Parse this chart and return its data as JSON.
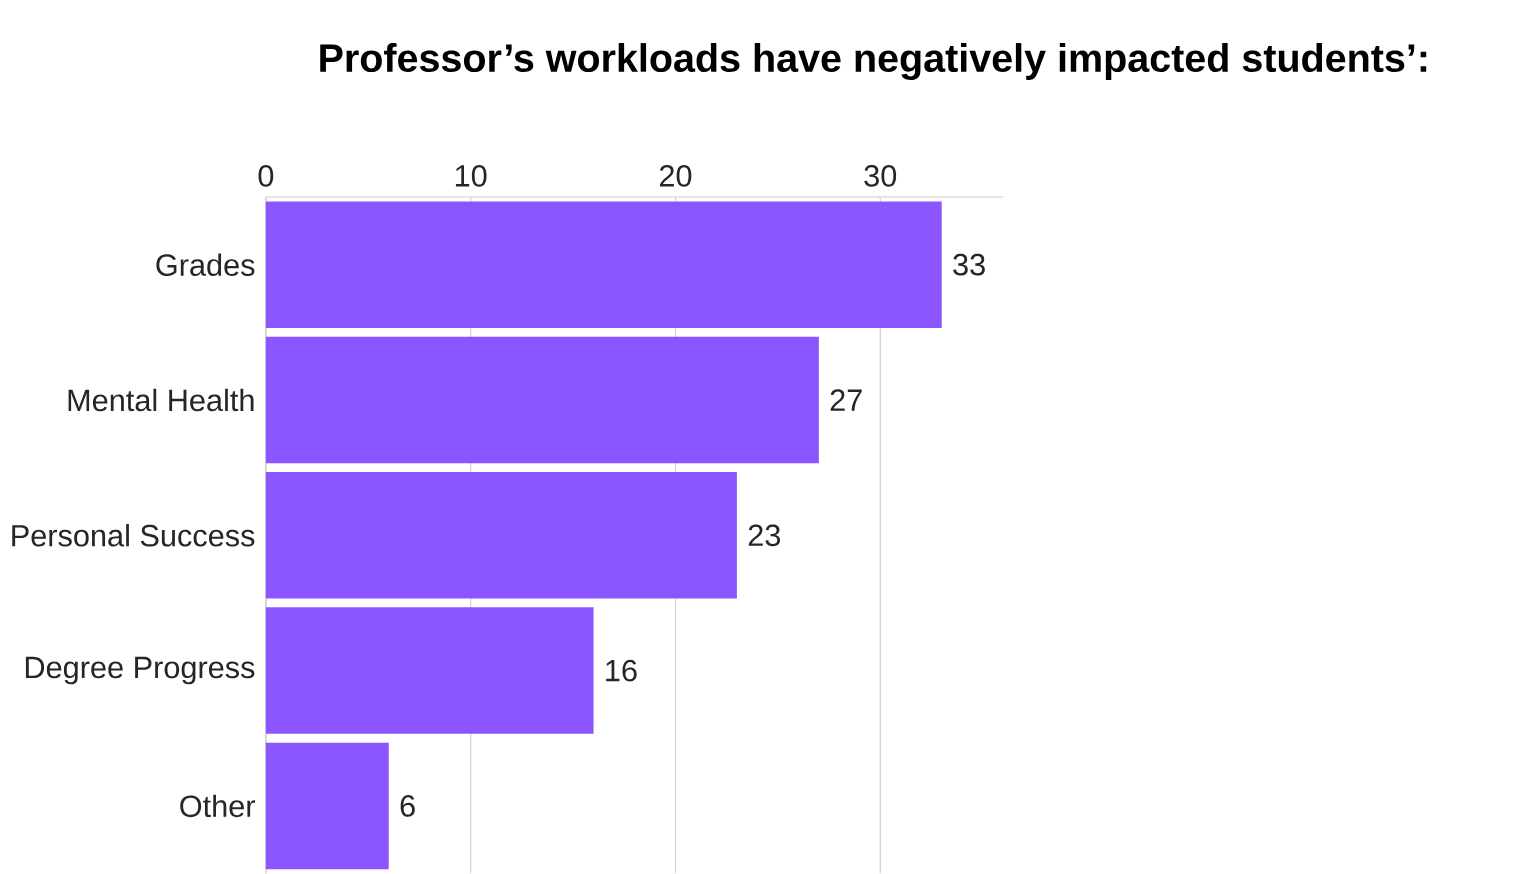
{
  "chart_data": {
    "type": "bar",
    "orientation": "horizontal",
    "title": "Professor’s workloads have negatively impacted students’:",
    "categories": [
      "Grades",
      "Mental Health",
      "Personal Success",
      "Degree Progress",
      "Other"
    ],
    "values": [
      33,
      27,
      23,
      16,
      6
    ],
    "color": "#8b55ff",
    "xlim": [
      0,
      36
    ],
    "xticks": [
      0,
      10,
      20,
      30
    ],
    "grid": "x",
    "data_labels": true
  }
}
